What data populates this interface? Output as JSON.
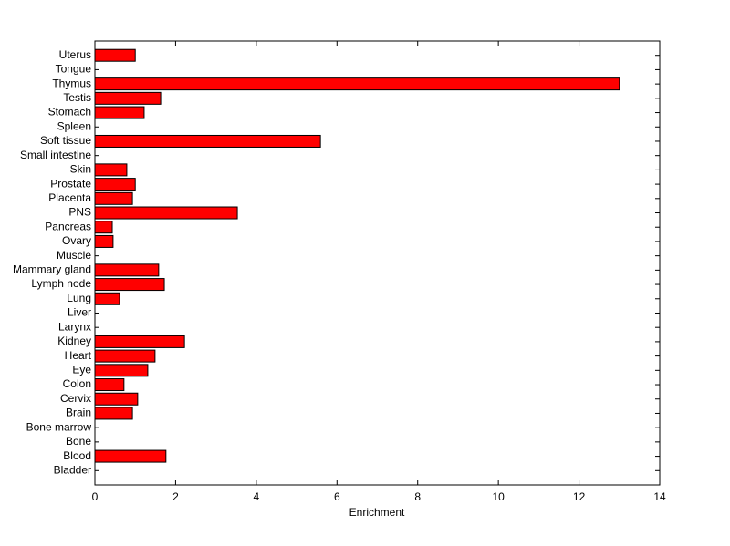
{
  "chart_data": {
    "type": "hbar",
    "xlabel": "Enrichment",
    "categories": [
      "Uterus",
      "Tongue",
      "Thymus",
      "Testis",
      "Stomach",
      "Spleen",
      "Soft tissue",
      "Small intestine",
      "Skin",
      "Prostate",
      "Placenta",
      "PNS",
      "Pancreas",
      "Ovary",
      "Muscle",
      "Mammary gland",
      "Lymph node",
      "Lung",
      "Liver",
      "Larynx",
      "Kidney",
      "Heart",
      "Eye",
      "Colon",
      "Cervix",
      "Brain",
      "Bone marrow",
      "Bone",
      "Blood",
      "Bladder"
    ],
    "values": [
      1.0,
      0,
      13.0,
      1.63,
      1.22,
      0,
      5.59,
      0,
      0.79,
      1.0,
      0.93,
      3.53,
      0.43,
      0.45,
      0,
      1.58,
      1.72,
      0.61,
      0,
      0,
      2.22,
      1.49,
      1.31,
      0.72,
      1.06,
      0.93,
      0,
      0,
      1.76,
      0
    ],
    "color": "#ff0000",
    "xlim": [
      0,
      14
    ],
    "xticks": [
      0,
      2,
      4,
      6,
      8,
      10,
      12,
      14
    ]
  }
}
